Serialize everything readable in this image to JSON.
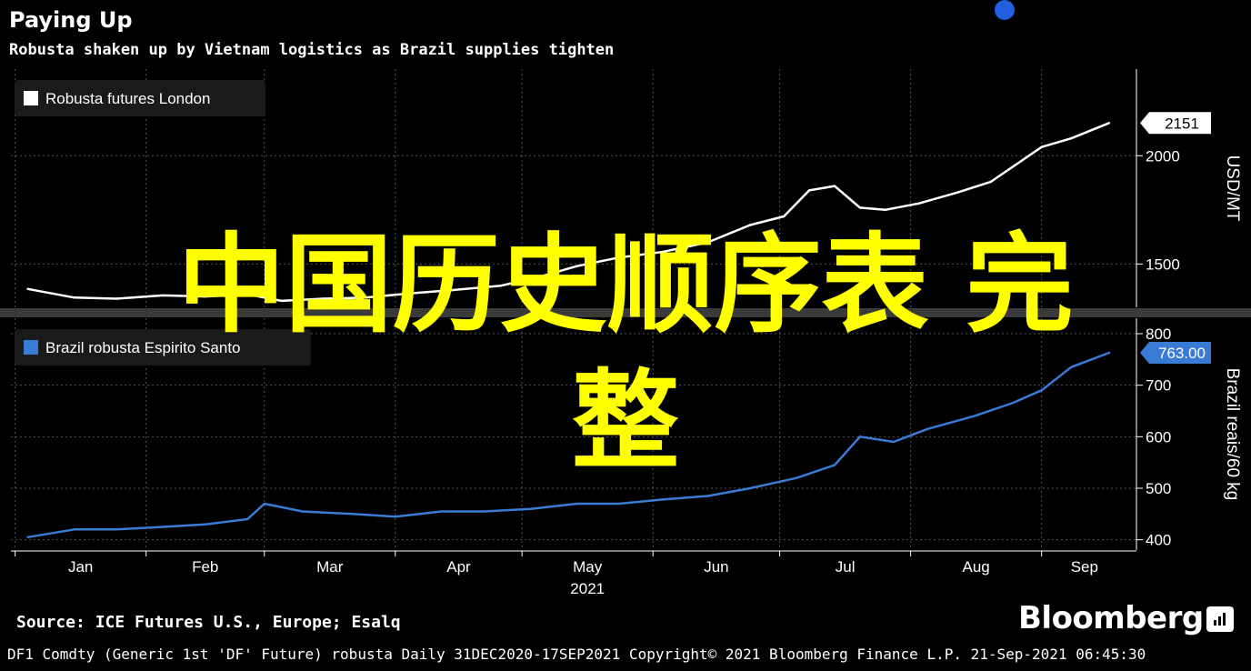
{
  "header": {
    "title": "Paying Up",
    "subtitle": "Robusta shaken up by Vietnam logistics as Brazil supplies tighten"
  },
  "accent_dot_color": "#1f5fe0",
  "overlay": {
    "line1": "中国历史顺序表 完",
    "line2": "整",
    "color": "#ffff00"
  },
  "footer": {
    "source": "Source: ICE Futures U.S., Europe; Esalq",
    "brand": "Bloomberg",
    "brand_icon": "bloomberg-terminal-icon",
    "details": "DF1 Comdty (Generic 1st 'DF' Future) robusta  Daily 31DEC2020-17SEP2021  Copyright© 2021 Bloomberg Finance L.P.  21-Sep-2021 06:45:30"
  },
  "chart_data": [
    {
      "type": "line",
      "legend": "Robusta futures London",
      "legend_placement": "top-left",
      "color": "#ffffff",
      "ylabel": "USD/MT",
      "yticks": [
        "1500",
        "2000"
      ],
      "ylim": [
        1300,
        2400
      ],
      "last_value_label": "2151",
      "grid": true,
      "x": [
        "2021-01-04",
        "2021-01-15",
        "2021-01-25",
        "2021-02-05",
        "2021-02-15",
        "2021-02-25",
        "2021-03-05",
        "2021-03-15",
        "2021-03-25",
        "2021-04-05",
        "2021-04-15",
        "2021-04-26",
        "2021-05-05",
        "2021-05-14",
        "2021-05-24",
        "2021-06-03",
        "2021-06-14",
        "2021-06-24",
        "2021-07-02",
        "2021-07-08",
        "2021-07-14",
        "2021-07-20",
        "2021-07-26",
        "2021-08-03",
        "2021-08-12",
        "2021-08-20",
        "2021-08-26",
        "2021-09-01",
        "2021-09-08",
        "2021-09-17"
      ],
      "y": [
        1385,
        1345,
        1340,
        1355,
        1350,
        1360,
        1330,
        1340,
        1345,
        1365,
        1380,
        1400,
        1440,
        1490,
        1530,
        1555,
        1600,
        1680,
        1720,
        1840,
        1860,
        1760,
        1750,
        1780,
        1830,
        1880,
        1960,
        2040,
        2080,
        2151
      ]
    },
    {
      "type": "line",
      "legend": "Brazil robusta Espirito Santo",
      "legend_placement": "top-left",
      "color": "#3a7bd5",
      "ylabel": "Brazil reais/60 kg",
      "yticks": [
        "400",
        "500",
        "600",
        "700",
        "800"
      ],
      "ylim": [
        380,
        830
      ],
      "last_value_label": "763.00",
      "grid": true,
      "x": [
        "2021-01-04",
        "2021-01-15",
        "2021-01-25",
        "2021-02-05",
        "2021-02-15",
        "2021-02-25",
        "2021-03-01",
        "2021-03-10",
        "2021-03-22",
        "2021-04-01",
        "2021-04-12",
        "2021-04-22",
        "2021-05-03",
        "2021-05-14",
        "2021-05-24",
        "2021-06-03",
        "2021-06-14",
        "2021-06-24",
        "2021-07-05",
        "2021-07-14",
        "2021-07-20",
        "2021-07-28",
        "2021-08-05",
        "2021-08-16",
        "2021-08-25",
        "2021-09-01",
        "2021-09-08",
        "2021-09-17"
      ],
      "y": [
        405,
        420,
        420,
        425,
        430,
        440,
        470,
        455,
        450,
        445,
        455,
        455,
        460,
        470,
        470,
        478,
        485,
        500,
        520,
        545,
        600,
        590,
        615,
        640,
        665,
        690,
        735,
        763
      ]
    }
  ],
  "x_axis": {
    "months": [
      "Jan",
      "Feb",
      "Mar",
      "Apr",
      "May",
      "Jun",
      "Jul",
      "Aug",
      "Sep"
    ],
    "month_starts": [
      "2021-01-01",
      "2021-02-01",
      "2021-03-01",
      "2021-04-01",
      "2021-05-01",
      "2021-06-01",
      "2021-07-01",
      "2021-08-01",
      "2021-09-01"
    ],
    "year_label": "2021",
    "year_under_month": "May",
    "domain": [
      "2020-12-31",
      "2021-09-17"
    ]
  }
}
